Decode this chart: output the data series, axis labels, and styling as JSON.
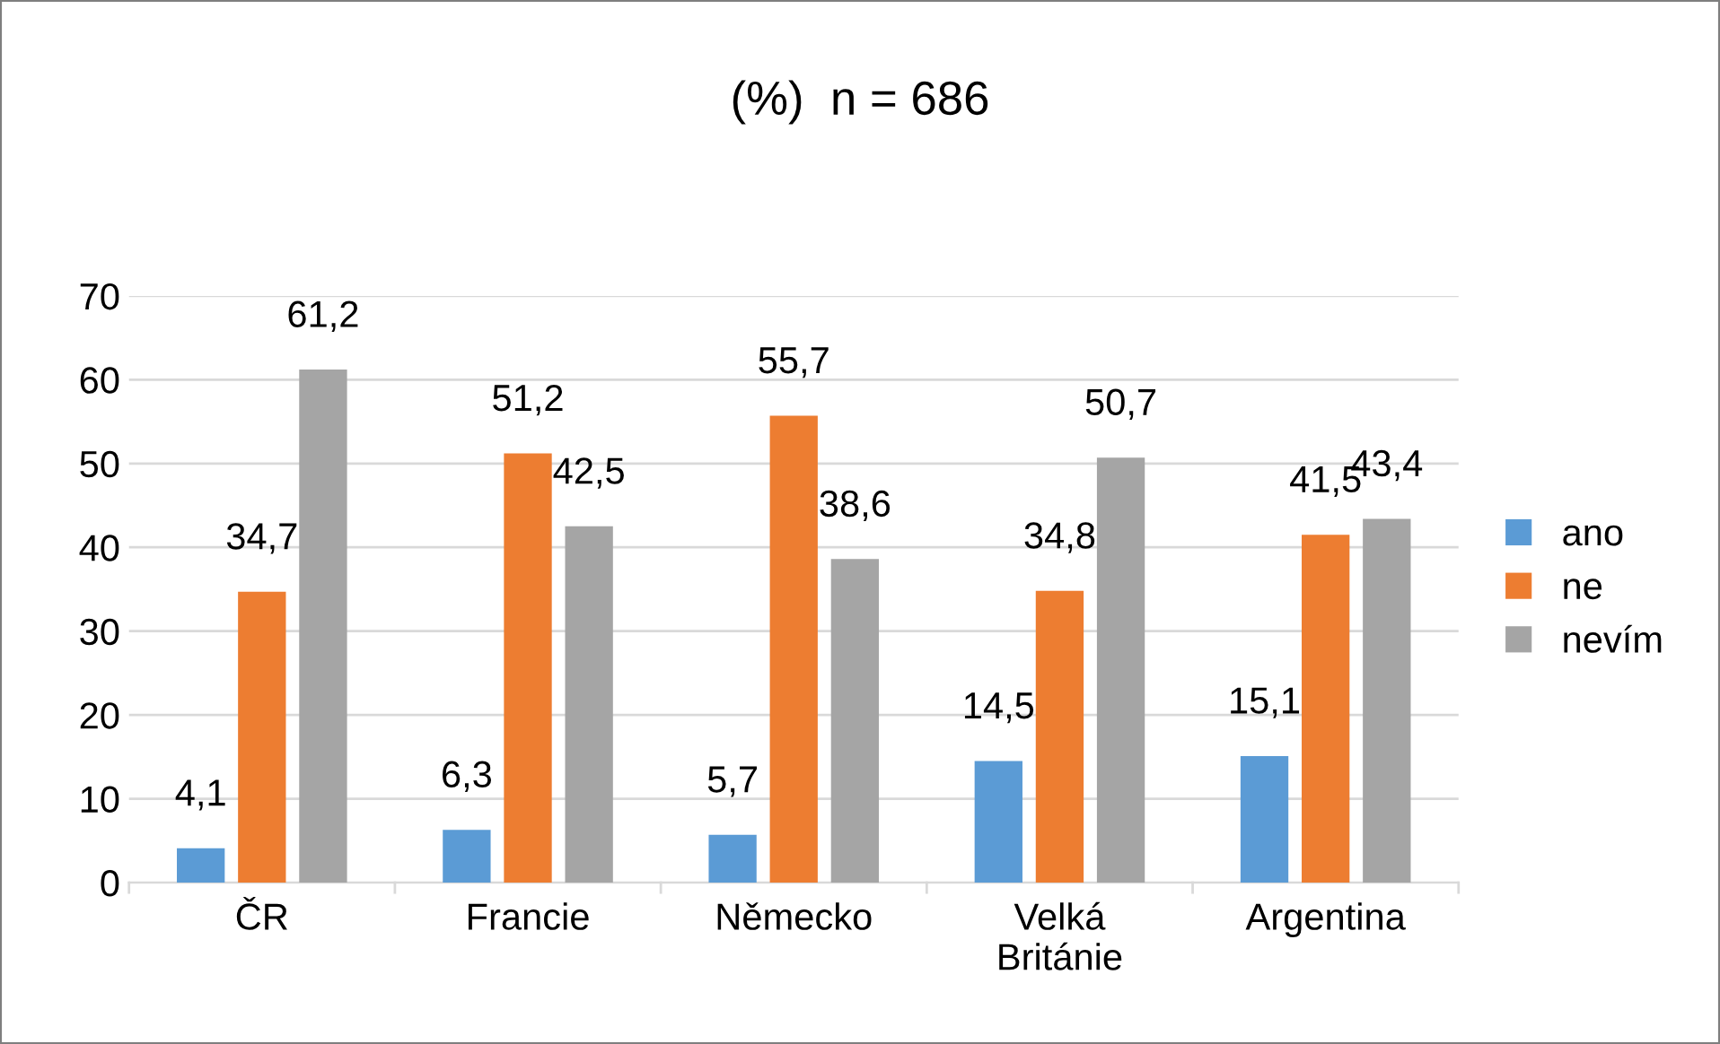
{
  "chart_data": {
    "type": "bar",
    "title": "(%)  n = 686",
    "categories": [
      "ČR",
      "Francie",
      "Německo",
      "Velká Británie",
      "Argentina"
    ],
    "series": [
      {
        "name": "ano",
        "color": "#5b9bd5",
        "values": [
          4.1,
          6.3,
          5.7,
          14.5,
          15.1
        ],
        "value_labels": [
          "4,1",
          "6,3",
          "5,7",
          "14,5",
          "15,1"
        ]
      },
      {
        "name": "ne",
        "color": "#ed7d31",
        "values": [
          34.7,
          51.2,
          55.7,
          34.8,
          41.5
        ],
        "value_labels": [
          "34,7",
          "51,2",
          "55,7",
          "34,8",
          "41,5"
        ]
      },
      {
        "name": "nevím",
        "color": "#a5a5a5",
        "values": [
          61.2,
          42.5,
          38.6,
          50.7,
          43.4
        ],
        "value_labels": [
          "61,2",
          "42,5",
          "38,6",
          "50,7",
          "43,4"
        ]
      }
    ],
    "ylim": [
      0,
      70
    ],
    "yticks": [
      0,
      10,
      20,
      30,
      40,
      50,
      60,
      70
    ],
    "grid": "y",
    "legend": "right"
  }
}
